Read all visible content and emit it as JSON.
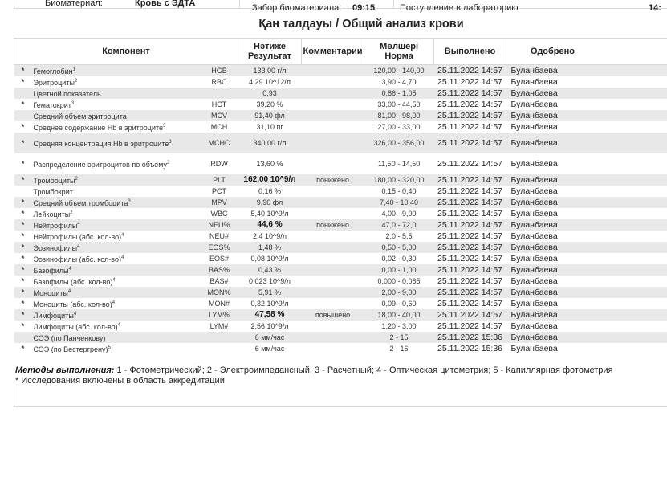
{
  "top": {
    "biomaterial_label": "Биоматериал:",
    "biomaterial_value": "Кровь с ЭДТА",
    "collection_label": "Забор биоматериала:",
    "collection_time": "09:15",
    "arrival_label": "Поступление в лабораторию:",
    "arrival_time": "14:"
  },
  "title": "Қан талдауы / Общий анализ крови",
  "headers": {
    "component": "Компонент",
    "result_kz": "Нәтиже",
    "result_ru": "Результат",
    "comments": "Комментарии",
    "norm_kz": "Мөлшері",
    "norm_ru": "Норма",
    "done": "Выполнено",
    "approved": "Одобрено"
  },
  "rows": [
    {
      "star": "*",
      "name": "Гемоглобин",
      "sup": "1",
      "code": "HGB",
      "result": "133,00 г/л",
      "bold": false,
      "comment": "",
      "norm": "120,00 - 140,00",
      "done": "25.11.2022 14:57",
      "approved": "Буланбаева"
    },
    {
      "star": "*",
      "name": "Эритроциты",
      "sup": "2",
      "code": "RBC",
      "result": "4,29 10^12/л",
      "bold": false,
      "comment": "",
      "norm": "3,90 - 4,70",
      "done": "25.11.2022 14:57",
      "approved": "Буланбаева"
    },
    {
      "star": "",
      "name": "Цветной показатель",
      "sup": "",
      "code": "",
      "result": "0,93",
      "bold": false,
      "comment": "",
      "norm": "0,86 - 1,05",
      "done": "25.11.2022 14:57",
      "approved": "Буланбаева"
    },
    {
      "star": "*",
      "name": "Гематокрит",
      "sup": "3",
      "code": "HCT",
      "result": "39,20 %",
      "bold": false,
      "comment": "",
      "norm": "33,00 - 44,50",
      "done": "25.11.2022 14:57",
      "approved": "Буланбаева"
    },
    {
      "star": "",
      "name": "Средний объем эритроцита",
      "sup": "",
      "code": "MCV",
      "result": "91,40 фл",
      "bold": false,
      "comment": "",
      "norm": "81,00 - 98,00",
      "done": "25.11.2022 14:57",
      "approved": "Буланбаева"
    },
    {
      "star": "*",
      "name": "Среднее содержание Hb в эритроците",
      "sup": "3",
      "code": "MCH",
      "result": "31,10 пг",
      "bold": false,
      "comment": "",
      "norm": "27,00 - 33,00",
      "done": "25.11.2022 14:57",
      "approved": "Буланбаева"
    },
    {
      "star": "*",
      "name": "Средняя концентрация Hb в эритроците",
      "sup": "3",
      "code": "MCHC",
      "result": "340,00 г/л",
      "bold": false,
      "comment": "",
      "norm": "326,00 - 356,00",
      "done": "25.11.2022 14:57",
      "approved": "Буланбаева",
      "dbl": true
    },
    {
      "star": "*",
      "name": "Распределение эритроцитов по объему",
      "sup": "3",
      "code": "RDW",
      "result": "13,60 %",
      "bold": false,
      "comment": "",
      "norm": "11,50 - 14,50",
      "done": "25.11.2022 14:57",
      "approved": "Буланбаева",
      "dbl": true
    },
    {
      "star": "*",
      "name": "Тромбоциты",
      "sup": "2",
      "code": "PLT",
      "result": "162,00 10^9/л",
      "bold": true,
      "comment": "понижено",
      "norm": "180,00 - 320,00",
      "done": "25.11.2022 14:57",
      "approved": "Буланбаева"
    },
    {
      "star": "",
      "name": "Тромбокрит",
      "sup": "",
      "code": "PCT",
      "result": "0,16 %",
      "bold": false,
      "comment": "",
      "norm": "0,15 - 0,40",
      "done": "25.11.2022 14:57",
      "approved": "Буланбаева"
    },
    {
      "star": "*",
      "name": "Средний объем тромбоцита",
      "sup": "3",
      "code": "MPV",
      "result": "9,90 фл",
      "bold": false,
      "comment": "",
      "norm": "7,40 - 10,40",
      "done": "25.11.2022 14:57",
      "approved": "Буланбаева"
    },
    {
      "star": "*",
      "name": "Лейкоциты",
      "sup": "2",
      "code": "WBC",
      "result": "5,40 10^9/л",
      "bold": false,
      "comment": "",
      "norm": "4,00 - 9,00",
      "done": "25.11.2022 14:57",
      "approved": "Буланбаева"
    },
    {
      "star": "*",
      "name": "Нейтрофилы",
      "sup": "4",
      "code": "NEU%",
      "result": "44,6 %",
      "bold": true,
      "comment": "понижено",
      "norm": "47,0 - 72,0",
      "done": "25.11.2022 14:57",
      "approved": "Буланбаева"
    },
    {
      "star": "*",
      "name": "Нейтрофилы (абс. кол-во)",
      "sup": "4",
      "code": "NEU#",
      "result": "2,4 10^9/л",
      "bold": false,
      "comment": "",
      "norm": "2,0 - 5,5",
      "done": "25.11.2022 14:57",
      "approved": "Буланбаева"
    },
    {
      "star": "*",
      "name": "Эозинофилы",
      "sup": "4",
      "code": "EOS%",
      "result": "1,48 %",
      "bold": false,
      "comment": "",
      "norm": "0,50 - 5,00",
      "done": "25.11.2022 14:57",
      "approved": "Буланбаева"
    },
    {
      "star": "*",
      "name": "Эозинофилы (абс. кол-во)",
      "sup": "4",
      "code": "EOS#",
      "result": "0,08 10^9/л",
      "bold": false,
      "comment": "",
      "norm": "0,02 - 0,30",
      "done": "25.11.2022 14:57",
      "approved": "Буланбаева"
    },
    {
      "star": "*",
      "name": "Базофилы",
      "sup": "4",
      "code": "BAS%",
      "result": "0,43 %",
      "bold": false,
      "comment": "",
      "norm": "0,00 - 1,00",
      "done": "25.11.2022 14:57",
      "approved": "Буланбаева"
    },
    {
      "star": "*",
      "name": "Базофилы (абс. кол-во)",
      "sup": "4",
      "code": "BAS#",
      "result": "0,023 10^9/л",
      "bold": false,
      "comment": "",
      "norm": "0,000 - 0,065",
      "done": "25.11.2022 14:57",
      "approved": "Буланбаева"
    },
    {
      "star": "*",
      "name": "Моноциты",
      "sup": "4",
      "code": "MON%",
      "result": "5,91 %",
      "bold": false,
      "comment": "",
      "norm": "2,00 - 9,00",
      "done": "25.11.2022 14:57",
      "approved": "Буланбаева"
    },
    {
      "star": "*",
      "name": "Моноциты (абс. кол-во)",
      "sup": "4",
      "code": "MON#",
      "result": "0,32 10^9/л",
      "bold": false,
      "comment": "",
      "norm": "0,09 - 0,60",
      "done": "25.11.2022 14:57",
      "approved": "Буланбаева"
    },
    {
      "star": "*",
      "name": "Лимфоциты",
      "sup": "4",
      "code": "LYM%",
      "result": "47,58 %",
      "bold": true,
      "comment": "повышено",
      "norm": "18,00 - 40,00",
      "done": "25.11.2022 14:57",
      "approved": "Буланбаева"
    },
    {
      "star": "*",
      "name": "Лимфоциты (абс. кол-во)",
      "sup": "4",
      "code": "LYM#",
      "result": "2,56 10^9/л",
      "bold": false,
      "comment": "",
      "norm": "1,20 - 3,00",
      "done": "25.11.2022 14:57",
      "approved": "Буланбаева"
    },
    {
      "star": "",
      "name": "СОЭ (по Панченкову)",
      "sup": "",
      "code": "",
      "result": "6 мм/час",
      "bold": false,
      "comment": "",
      "norm": "2 - 15",
      "done": "25.11.2022 15:36",
      "approved": "Буланбаева"
    },
    {
      "star": "*",
      "name": "СОЭ (по Вестергрену)",
      "sup": "5",
      "code": "",
      "result": "6 мм/час",
      "bold": false,
      "comment": "",
      "norm": "2 - 16",
      "done": "25.11.2022 15:36",
      "approved": "Буланбаева"
    }
  ],
  "notes": {
    "methods_label": "Методы выполнения:",
    "methods_text": " 1 - Фотометрический; 2 - Электроимпедансный; 3 - Расчетный; 4 - Оптическая цитометрия; 5 - Капиллярная фотометрия",
    "accreditation": "* Исследования включены в область аккредитации"
  }
}
